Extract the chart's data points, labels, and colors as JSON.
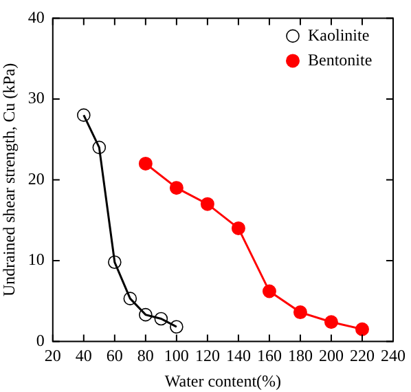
{
  "chart_data": {
    "type": "line",
    "xlabel": "Water content(%)",
    "ylabel": "Undrained shear strength, Cu (kPa)",
    "xlim": [
      20,
      240
    ],
    "xticks": [
      20,
      40,
      60,
      80,
      100,
      120,
      140,
      160,
      180,
      200,
      220,
      240
    ],
    "ylim": [
      0,
      40
    ],
    "yticks": [
      0,
      10,
      20,
      30,
      40
    ],
    "legend": "top right",
    "grid": false,
    "series": [
      {
        "name": "Kaolinite",
        "color": "#000000",
        "marker": "circle",
        "x": [
          40,
          50,
          60,
          70,
          80,
          90,
          100
        ],
        "values": [
          28,
          24,
          9.8,
          5.3,
          3.3,
          2.8,
          1.8
        ]
      },
      {
        "name": "Bentonite",
        "color": "#ff0000",
        "marker": "circle",
        "x": [
          80,
          100,
          120,
          140,
          160,
          180,
          200,
          220
        ],
        "values": [
          22,
          19,
          17,
          14,
          6.2,
          3.6,
          2.4,
          1.5
        ]
      }
    ]
  }
}
